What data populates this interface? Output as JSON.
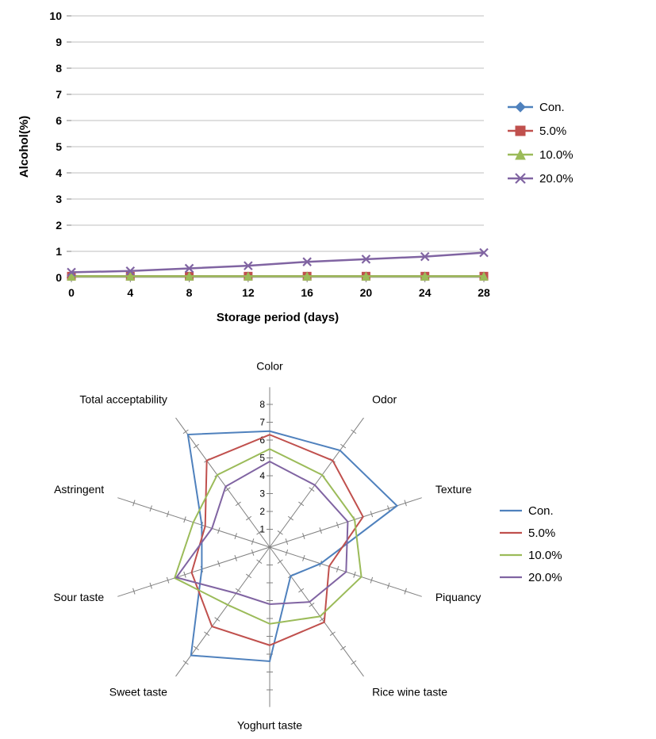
{
  "line_chart": {
    "type": "line",
    "title": null,
    "background_color": "#ffffff",
    "plot_area_color": "#ffffff",
    "grid_color": "#bfbfbf",
    "x_label": "Storage period (days)",
    "y_label": "Alcohol(%)",
    "label_fontsize": 15,
    "label_fontweight": "bold",
    "tick_fontsize": 14,
    "tick_color": "#000000",
    "x_categories": [
      0,
      4,
      8,
      12,
      16,
      20,
      24,
      28
    ],
    "y_ticks": [
      0,
      1,
      2,
      3,
      4,
      5,
      6,
      7,
      8,
      9,
      10
    ],
    "ylim": [
      0,
      10
    ],
    "series": [
      {
        "name": "Con.",
        "color": "#4f81bd",
        "marker": "diamond",
        "values": [
          0.05,
          0.05,
          0.05,
          0.05,
          0.05,
          0.05,
          0.05,
          0.05
        ]
      },
      {
        "name": "5.0%",
        "color": "#c0504d",
        "marker": "square",
        "values": [
          0.05,
          0.05,
          0.05,
          0.05,
          0.05,
          0.05,
          0.05,
          0.05
        ]
      },
      {
        "name": "10.0%",
        "color": "#9bbb59",
        "marker": "triangle",
        "values": [
          0.05,
          0.05,
          0.05,
          0.05,
          0.05,
          0.05,
          0.05,
          0.05
        ]
      },
      {
        "name": "20.0%",
        "color": "#8064a2",
        "marker": "x",
        "values": [
          0.2,
          0.25,
          0.35,
          0.45,
          0.6,
          0.7,
          0.8,
          0.95
        ]
      }
    ],
    "legend_position": "right"
  },
  "radar_chart": {
    "type": "radar",
    "background_color": "#ffffff",
    "grid_color": "#808080",
    "axis_label_fontsize": 14,
    "axis_labels": [
      "Color",
      "Odor",
      "Texture",
      "Piquancy",
      "Rice wine taste",
      "Yoghurt taste",
      "Sweet taste",
      "Sour taste",
      "Astringent",
      "Total acceptability"
    ],
    "ticks": [
      0,
      1,
      2,
      3,
      4,
      5,
      6,
      7,
      8
    ],
    "max": 8,
    "series": [
      {
        "name": "Con.",
        "color": "#4f81bd",
        "values": [
          6.5,
          6.7,
          7.5,
          3.0,
          2.0,
          6.4,
          7.5,
          4.0,
          4.0,
          7.8
        ]
      },
      {
        "name": "5.0%",
        "color": "#c0504d",
        "values": [
          6.3,
          6.0,
          5.5,
          3.5,
          5.2,
          5.5,
          5.5,
          4.6,
          3.8,
          6.0
        ]
      },
      {
        "name": "10.0%",
        "color": "#9bbb59",
        "values": [
          5.5,
          5.0,
          5.0,
          5.4,
          4.8,
          4.3,
          4.0,
          5.6,
          4.5,
          5.0
        ]
      },
      {
        "name": "20.0%",
        "color": "#8064a2",
        "values": [
          4.8,
          4.3,
          4.6,
          4.5,
          3.8,
          3.2,
          3.2,
          5.5,
          3.4,
          4.2
        ]
      }
    ],
    "legend_position": "right"
  }
}
